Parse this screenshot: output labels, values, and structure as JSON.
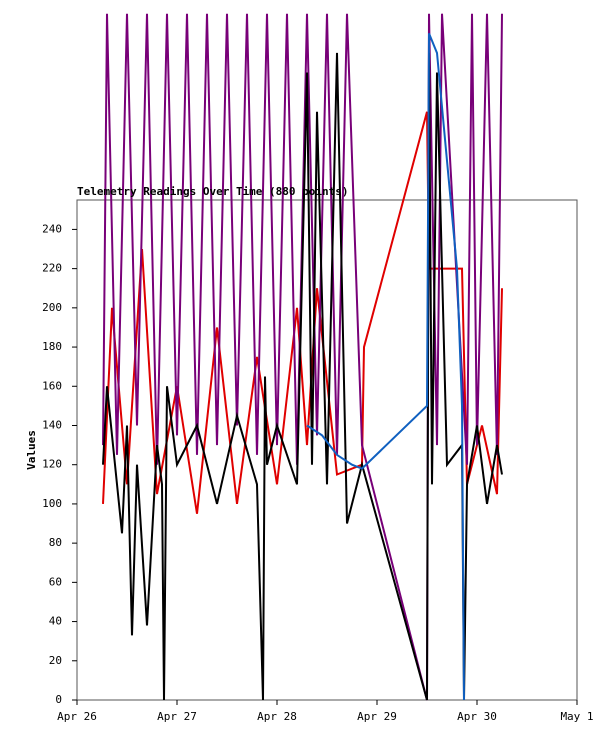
{
  "chart_data": {
    "type": "line",
    "title": "Telemetry Readings Over Time (880 points)",
    "ylabel": "Values",
    "xlim": [
      0,
      5
    ],
    "xticks": [
      {
        "value": 0,
        "label": "Apr 26"
      },
      {
        "value": 1,
        "label": "Apr 27"
      },
      {
        "value": 2,
        "label": "Apr 28"
      },
      {
        "value": 3,
        "label": "Apr 29"
      },
      {
        "value": 4,
        "label": "Apr 30"
      },
      {
        "value": 5,
        "label": "May 1"
      }
    ],
    "ylim": [
      0,
      255
    ],
    "yticks": [
      0,
      20,
      40,
      60,
      80,
      100,
      120,
      140,
      160,
      180,
      200,
      220,
      240
    ],
    "series": [
      {
        "name": "Red",
        "color": "#e00000",
        "x": [
          0.26,
          0.35,
          0.5,
          0.65,
          0.8,
          1.0,
          1.2,
          1.4,
          1.6,
          1.8,
          2.0,
          2.2,
          2.3,
          2.4,
          2.6,
          2.85,
          2.87,
          3.5,
          3.52,
          3.65,
          3.85,
          3.9,
          4.05,
          4.2,
          4.25
        ],
        "values": [
          100,
          200,
          110,
          230,
          105,
          160,
          95,
          190,
          100,
          175,
          110,
          200,
          130,
          210,
          115,
          120,
          180,
          300,
          220,
          220,
          220,
          110,
          140,
          105,
          210
        ]
      },
      {
        "name": "Purple",
        "color": "#780078",
        "x": [
          0.26,
          0.3,
          0.4,
          0.5,
          0.6,
          0.7,
          0.8,
          0.9,
          1.0,
          1.1,
          1.2,
          1.3,
          1.4,
          1.5,
          1.6,
          1.7,
          1.8,
          1.9,
          2.0,
          2.1,
          2.2,
          2.3,
          2.4,
          2.5,
          2.6,
          2.7,
          2.85,
          3.5,
          3.52,
          3.6,
          3.65,
          3.9,
          3.95,
          4.0,
          4.1,
          4.2,
          4.25
        ],
        "values": [
          130,
          350,
          125,
          350,
          140,
          350,
          120,
          350,
          135,
          350,
          125,
          350,
          130,
          350,
          140,
          350,
          125,
          350,
          130,
          350,
          120,
          350,
          135,
          350,
          125,
          350,
          130,
          0,
          350,
          130,
          350,
          120,
          350,
          130,
          350,
          125,
          350
        ]
      },
      {
        "name": "Black",
        "color": "#000000",
        "x": [
          0.26,
          0.3,
          0.4,
          0.45,
          0.5,
          0.55,
          0.6,
          0.7,
          0.8,
          0.85,
          0.87,
          0.9,
          1.0,
          1.2,
          1.4,
          1.6,
          1.8,
          1.86,
          1.88,
          1.9,
          2.0,
          2.2,
          2.3,
          2.35,
          2.4,
          2.5,
          2.6,
          2.7,
          2.85,
          3.5,
          3.52,
          3.55,
          3.6,
          3.7,
          3.85,
          3.87,
          3.9,
          4.0,
          4.1,
          4.2,
          4.25
        ],
        "values": [
          120,
          160,
          110,
          85,
          140,
          33,
          120,
          38,
          130,
          110,
          0,
          160,
          120,
          140,
          100,
          145,
          110,
          0,
          165,
          120,
          140,
          110,
          320,
          120,
          300,
          110,
          330,
          90,
          120,
          0,
          330,
          110,
          320,
          120,
          130,
          0,
          110,
          140,
          100,
          130,
          115
        ]
      },
      {
        "name": "Blue",
        "color": "#1060c0",
        "x": [
          2.3,
          2.45,
          2.6,
          2.75,
          2.85,
          3.5,
          3.52,
          3.6,
          3.8,
          3.85,
          3.87
        ],
        "values": [
          140,
          135,
          125,
          120,
          118,
          150,
          340,
          330,
          220,
          150,
          0
        ]
      }
    ]
  }
}
